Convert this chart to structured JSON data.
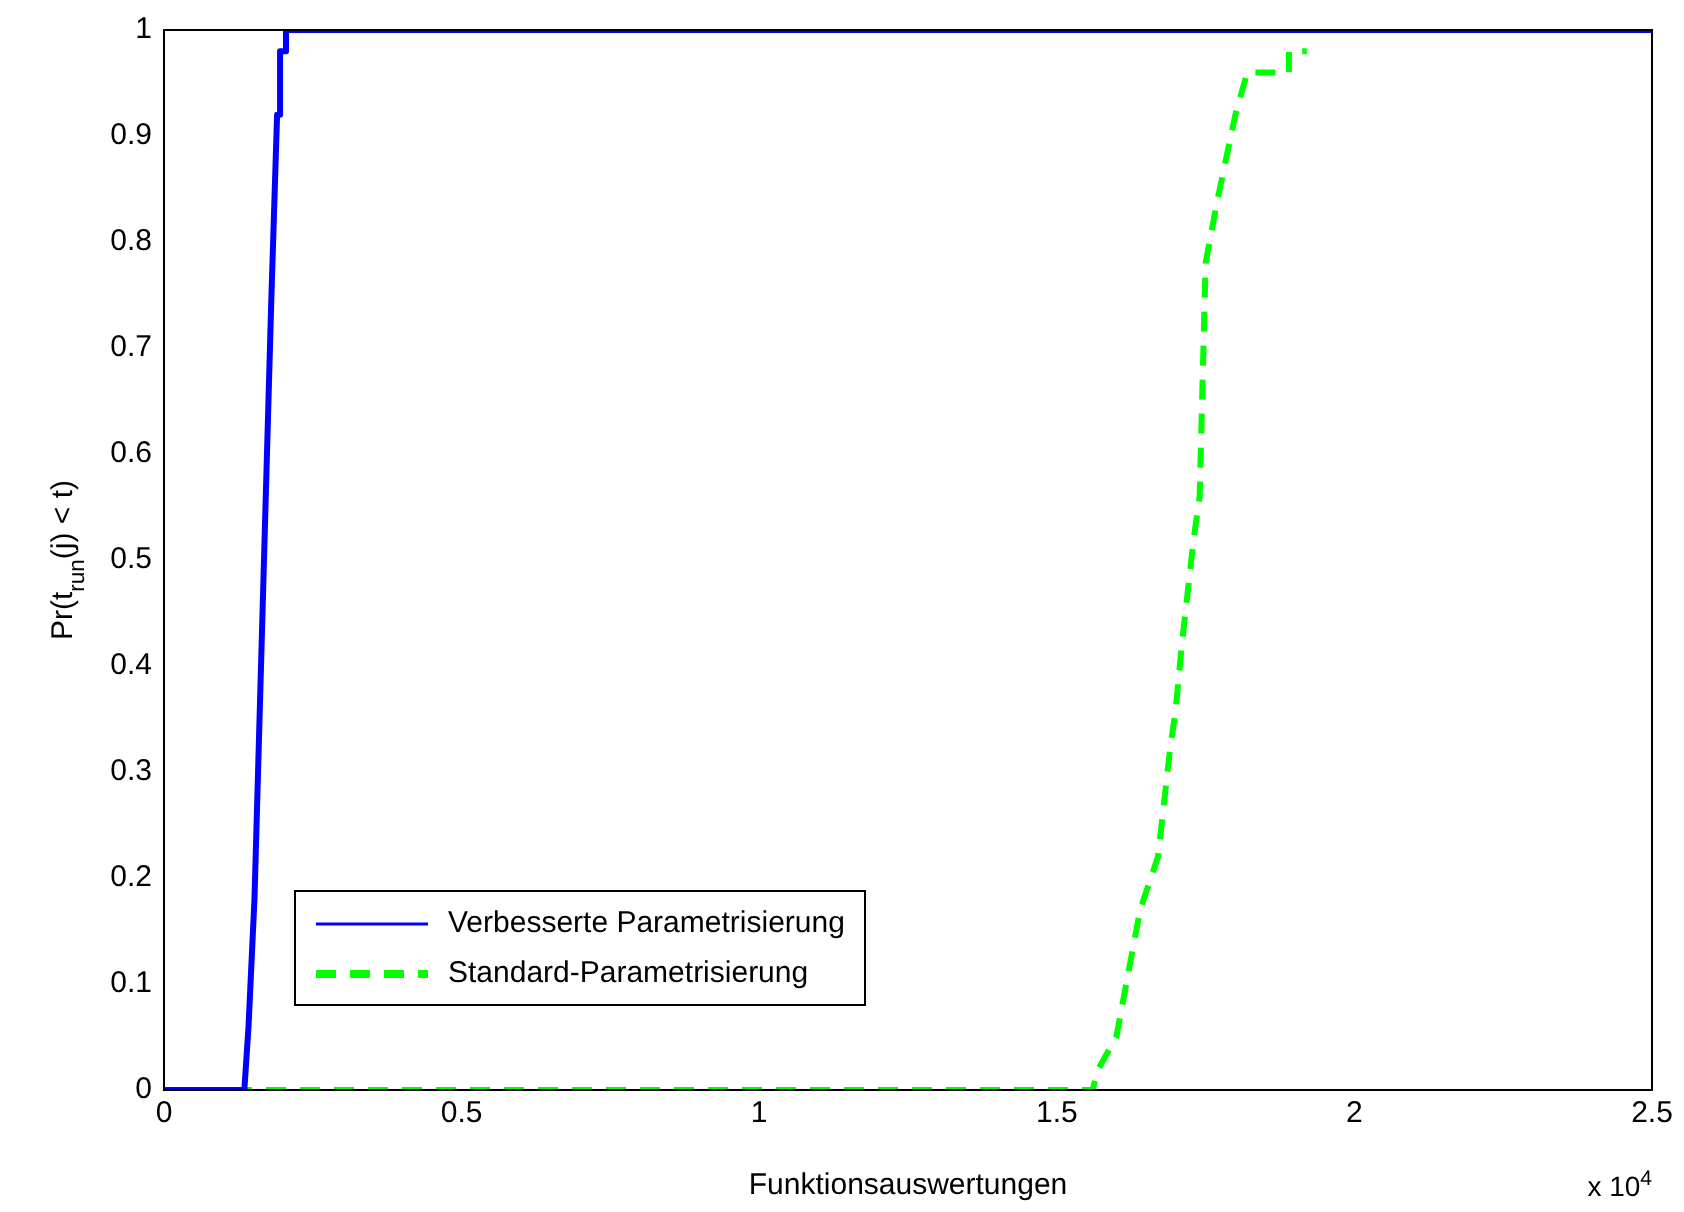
{
  "chart_data": {
    "type": "line",
    "xlabel": "Funktionsauswertungen",
    "ylabel": "Pr(t$_{run}$(j) < t)",
    "annotations": [
      "x 10$^{4}$"
    ],
    "xlim": [
      0,
      2.5
    ],
    "xticks": [
      0,
      0.5,
      1,
      1.5,
      2,
      2.5
    ],
    "ylim": [
      0,
      1
    ],
    "yticks": [
      0,
      0.1,
      0.2,
      0.3,
      0.4,
      0.5,
      0.6,
      0.7,
      0.8,
      0.9,
      1
    ],
    "grid": false,
    "legend": "bottom left",
    "marker": "none",
    "series": [
      {
        "name": "Verbesserte Parametrisierung",
        "color": "#0000ff",
        "line_style": "solid",
        "x": [
          0,
          0.135,
          0.142,
          0.152,
          0.171,
          0.18,
          0.19,
          0.195,
          0.195,
          0.205,
          0.205,
          2.5
        ],
        "values": [
          0,
          0,
          0.06,
          0.18,
          0.56,
          0.74,
          0.92,
          0.92,
          0.98,
          0.98,
          1,
          1
        ]
      },
      {
        "name": "Standard-Parametrisierung",
        "color": "#00ff00",
        "line_style": "dashed",
        "x": [
          0,
          1.56,
          1.57,
          1.6,
          1.64,
          1.67,
          1.69,
          1.7,
          1.71,
          1.73,
          1.74,
          1.75,
          1.77,
          1.8,
          1.82,
          1.89,
          1.89,
          1.92
        ],
        "values": [
          0,
          0,
          0.02,
          0.05,
          0.17,
          0.22,
          0.32,
          0.36,
          0.42,
          0.52,
          0.56,
          0.78,
          0.84,
          0.92,
          0.96,
          0.96,
          0.98,
          0.98
        ]
      }
    ]
  }
}
